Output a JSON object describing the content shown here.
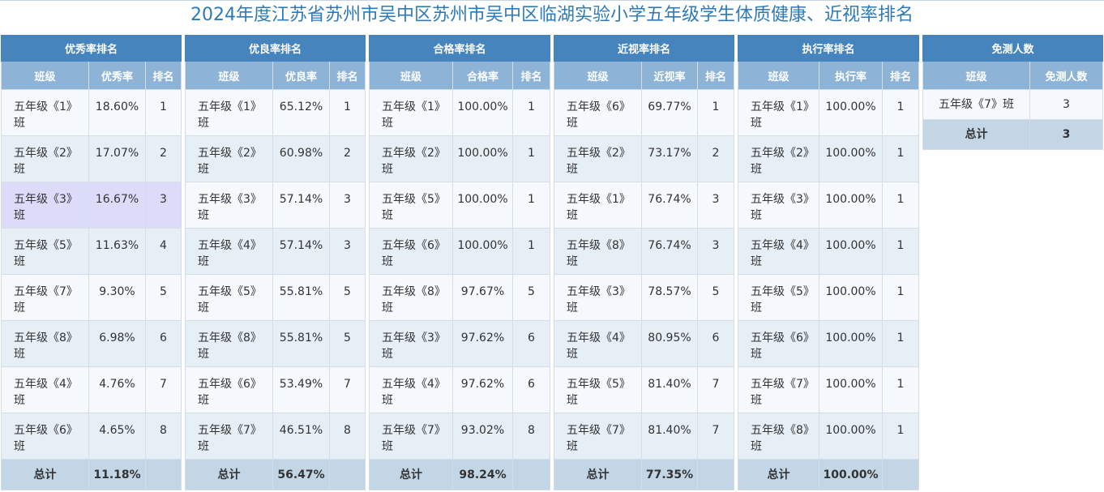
{
  "title": "2024年度江苏省苏州市吴中区苏州市吴中区临湖实验小学五年级学生体质健康、近视率排名",
  "tables": [
    {
      "name": "优秀率排名",
      "headers": [
        "班级",
        "优秀率",
        "排名"
      ],
      "rows": [
        {
          "cls": "五年级《1》班",
          "rate": "18.60%",
          "rank": "1"
        },
        {
          "cls": "五年级《2》班",
          "rate": "17.07%",
          "rank": "2"
        },
        {
          "cls": "五年级《3》班",
          "rate": "16.67%",
          "rank": "3"
        },
        {
          "cls": "五年级《5》班",
          "rate": "11.63%",
          "rank": "4"
        },
        {
          "cls": "五年级《7》班",
          "rate": "9.30%",
          "rank": "5"
        },
        {
          "cls": "五年级《8》班",
          "rate": "6.98%",
          "rank": "6"
        },
        {
          "cls": "五年级《4》班",
          "rate": "4.76%",
          "rank": "7"
        },
        {
          "cls": "五年级《6》班",
          "rate": "4.65%",
          "rank": "8"
        }
      ],
      "total_label": "总计",
      "total_value": "11.18%"
    },
    {
      "name": "优良率排名",
      "headers": [
        "班级",
        "优良率",
        "排名"
      ],
      "rows": [
        {
          "cls": "五年级《1》班",
          "rate": "65.12%",
          "rank": "1"
        },
        {
          "cls": "五年级《2》班",
          "rate": "60.98%",
          "rank": "2"
        },
        {
          "cls": "五年级《3》班",
          "rate": "57.14%",
          "rank": "3"
        },
        {
          "cls": "五年级《4》班",
          "rate": "57.14%",
          "rank": "3"
        },
        {
          "cls": "五年级《5》班",
          "rate": "55.81%",
          "rank": "5"
        },
        {
          "cls": "五年级《8》班",
          "rate": "55.81%",
          "rank": "5"
        },
        {
          "cls": "五年级《6》班",
          "rate": "53.49%",
          "rank": "7"
        },
        {
          "cls": "五年级《7》班",
          "rate": "46.51%",
          "rank": "8"
        }
      ],
      "total_label": "总计",
      "total_value": "56.47%"
    },
    {
      "name": "合格率排名",
      "headers": [
        "班级",
        "合格率",
        "排名"
      ],
      "rows": [
        {
          "cls": "五年级《1》班",
          "rate": "100.00%",
          "rank": "1"
        },
        {
          "cls": "五年级《2》班",
          "rate": "100.00%",
          "rank": "1"
        },
        {
          "cls": "五年级《5》班",
          "rate": "100.00%",
          "rank": "1"
        },
        {
          "cls": "五年级《6》班",
          "rate": "100.00%",
          "rank": "1"
        },
        {
          "cls": "五年级《8》班",
          "rate": "97.67%",
          "rank": "5"
        },
        {
          "cls": "五年级《3》班",
          "rate": "97.62%",
          "rank": "6"
        },
        {
          "cls": "五年级《4》班",
          "rate": "97.62%",
          "rank": "6"
        },
        {
          "cls": "五年级《7》班",
          "rate": "93.02%",
          "rank": "8"
        }
      ],
      "total_label": "总计",
      "total_value": "98.24%"
    },
    {
      "name": "近视率排名",
      "headers": [
        "班级",
        "近视率",
        "排名"
      ],
      "rows": [
        {
          "cls": "五年级《6》班",
          "rate": "69.77%",
          "rank": "1"
        },
        {
          "cls": "五年级《2》班",
          "rate": "73.17%",
          "rank": "2"
        },
        {
          "cls": "五年级《1》班",
          "rate": "76.74%",
          "rank": "3"
        },
        {
          "cls": "五年级《8》班",
          "rate": "76.74%",
          "rank": "3"
        },
        {
          "cls": "五年级《3》班",
          "rate": "78.57%",
          "rank": "5"
        },
        {
          "cls": "五年级《4》班",
          "rate": "80.95%",
          "rank": "6"
        },
        {
          "cls": "五年级《5》班",
          "rate": "81.40%",
          "rank": "7"
        },
        {
          "cls": "五年级《7》班",
          "rate": "81.40%",
          "rank": "7"
        }
      ],
      "total_label": "总计",
      "total_value": "77.35%"
    },
    {
      "name": "执行率排名",
      "headers": [
        "班级",
        "执行率",
        "排名"
      ],
      "rows": [
        {
          "cls": "五年级《1》班",
          "rate": "100.00%",
          "rank": "1"
        },
        {
          "cls": "五年级《2》班",
          "rate": "100.00%",
          "rank": "1"
        },
        {
          "cls": "五年级《3》班",
          "rate": "100.00%",
          "rank": "1"
        },
        {
          "cls": "五年级《4》班",
          "rate": "100.00%",
          "rank": "1"
        },
        {
          "cls": "五年级《5》班",
          "rate": "100.00%",
          "rank": "1"
        },
        {
          "cls": "五年级《6》班",
          "rate": "100.00%",
          "rank": "1"
        },
        {
          "cls": "五年级《7》班",
          "rate": "100.00%",
          "rank": "1"
        },
        {
          "cls": "五年级《8》班",
          "rate": "100.00%",
          "rank": "1"
        }
      ],
      "total_label": "总计",
      "total_value": "100.00%"
    }
  ],
  "exempt": {
    "name": "免测人数",
    "headers": [
      "班级",
      "免测人数"
    ],
    "rows": [
      {
        "cls": "五年级《7》班",
        "count": "3"
      }
    ],
    "total_label": "总计",
    "total_value": "3"
  }
}
